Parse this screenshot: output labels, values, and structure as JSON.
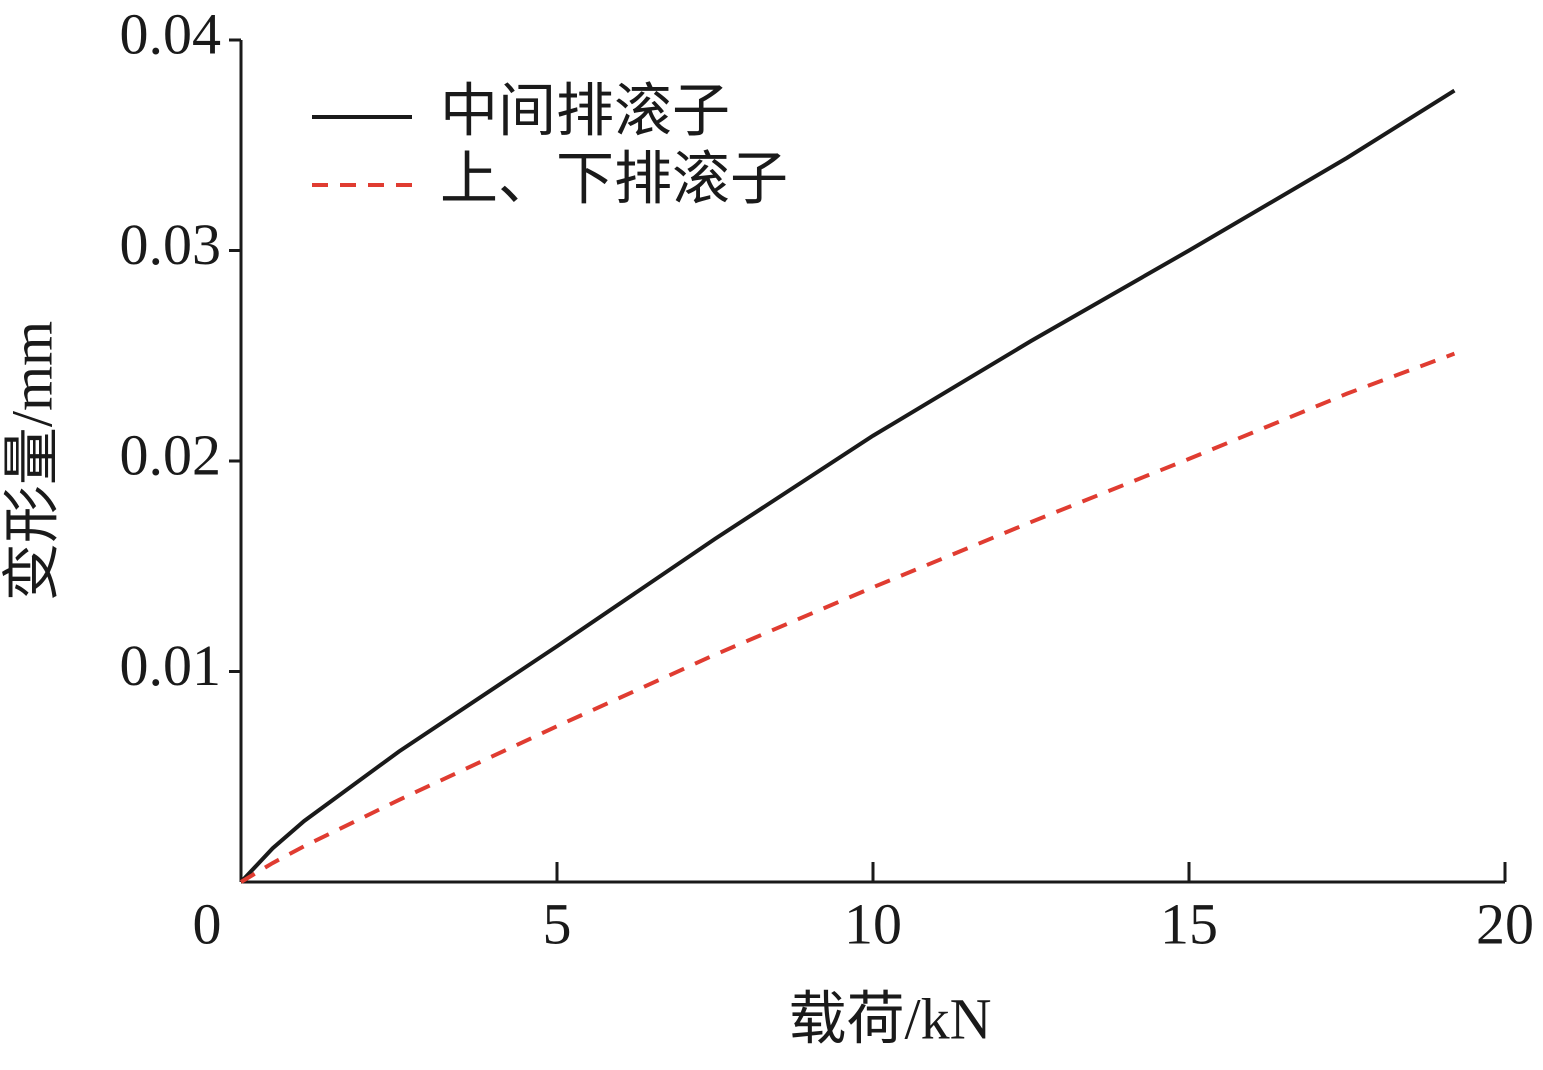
{
  "chart_data": {
    "type": "line",
    "x_label": "载荷/kN",
    "y_label": "变形量/mm",
    "x": [
      0,
      0.5,
      1,
      2.5,
      5,
      7.5,
      10,
      12.5,
      15,
      17.5,
      19.2
    ],
    "series": [
      {
        "name": "中间排滚子",
        "color": "#1a1a1a",
        "dash": "solid",
        "values": [
          0,
          0.0016,
          0.0029,
          0.0062,
          0.0112,
          0.0163,
          0.0212,
          0.0257,
          0.03,
          0.0344,
          0.0376
        ]
      },
      {
        "name": "上、下排滚子",
        "color": "#e03c31",
        "dash": "dashed",
        "values": [
          0,
          0.0009,
          0.0017,
          0.0039,
          0.0074,
          0.0108,
          0.014,
          0.0171,
          0.0201,
          0.0232,
          0.0251
        ]
      }
    ],
    "xlim": [
      0,
      20
    ],
    "xticks": [
      0,
      5,
      10,
      15,
      20
    ],
    "ylim": [
      0,
      0.04
    ],
    "yticks": [
      0.01,
      0.02,
      0.03,
      0.04
    ],
    "grid": false,
    "legend": "upper left"
  }
}
